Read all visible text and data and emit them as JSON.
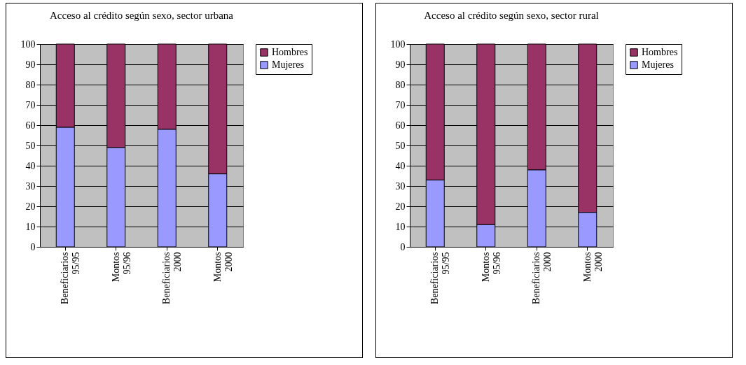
{
  "chart_data": [
    {
      "type": "bar",
      "title": "Acceso al crédito según sexo, sector urbana",
      "categories": [
        "Beneficiarios 95/95",
        "Montos 95/96",
        "Beneficiarios 2000",
        "Montos 2000"
      ],
      "stacked": true,
      "ylim": [
        0,
        100
      ],
      "yticks": [
        0,
        10,
        20,
        30,
        40,
        50,
        60,
        70,
        80,
        90,
        100
      ],
      "grid": "y",
      "legend": "right",
      "series": [
        {
          "name": "Mujeres",
          "color": "#9999ff",
          "values": [
            59,
            49,
            58,
            36
          ]
        },
        {
          "name": "Hombres",
          "color": "#993366",
          "values": [
            41,
            51,
            42,
            64
          ]
        }
      ]
    },
    {
      "type": "bar",
      "title": "Acceso al crédito según sexo, sector rural",
      "categories": [
        "Beneficiarios 95/95",
        "Montos 95/96",
        "Beneficiarios 2000",
        "Montos 2000"
      ],
      "stacked": true,
      "ylim": [
        0,
        100
      ],
      "yticks": [
        0,
        10,
        20,
        30,
        40,
        50,
        60,
        70,
        80,
        90,
        100
      ],
      "grid": "y",
      "legend": "right",
      "series": [
        {
          "name": "Mujeres",
          "color": "#9999ff",
          "values": [
            33,
            11,
            38,
            17
          ]
        },
        {
          "name": "Hombres",
          "color": "#993366",
          "values": [
            67,
            89,
            62,
            83
          ]
        }
      ]
    }
  ]
}
